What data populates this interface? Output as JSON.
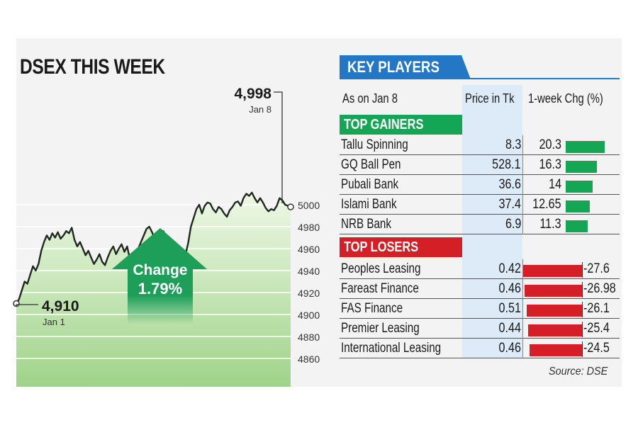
{
  "chart_data": [
    {
      "type": "area",
      "title": "DSEX THIS WEEK",
      "ylim": [
        4850,
        5010
      ],
      "yticks": [
        4860,
        4880,
        4900,
        4920,
        4940,
        4960,
        4980,
        5000
      ],
      "grid": true,
      "series": [
        {
          "values": [
            4910,
            4914,
            4922,
            4930,
            4928,
            4936,
            4944,
            4940,
            4946,
            4958,
            4966,
            4972,
            4968,
            4974,
            4970,
            4975,
            4969,
            4972,
            4976,
            4974,
            4979,
            4968,
            4962,
            4966,
            4960,
            4954,
            4958,
            4952,
            4946,
            4950,
            4955,
            4948,
            4945,
            4952,
            4958,
            4962,
            4955,
            4960,
            4964,
            4957,
            4962,
            4950,
            4946,
            4952,
            4960,
            4966,
            4972,
            4978,
            4980,
            4975,
            4968,
            4964,
            4970,
            4976,
            4972,
            4965,
            4960,
            4956,
            4962,
            4955,
            4958,
            4954,
            4965,
            4980,
            4988,
            4996,
            5000,
            4992,
            4999,
            5002,
            5001,
            4996,
            4993,
            4998,
            4996,
            4992,
            4989,
            4995,
            4998,
            5002,
            5003,
            4999,
            5006,
            5010,
            5008,
            5011,
            5006,
            5002,
            5006,
            5002,
            4997,
            4994,
            4996,
            4995,
            4999,
            5006,
            5004,
            5000,
            4999,
            4998
          ]
        }
      ],
      "start": {
        "value": "4,910",
        "date": "Jan 1"
      },
      "end": {
        "value": "4,998",
        "date": "Jan 8"
      },
      "change_label": "Change",
      "change_value": "1.79%"
    },
    {
      "type": "bar",
      "title": "KEY PLAYERS",
      "headers": {
        "as_on": "As on Jan 8",
        "price": "Price in Tk",
        "change": "1-week Chg (%)"
      },
      "gainers_label": "TOP GAINERS",
      "losers_label": "TOP LOSERS",
      "gainers": [
        {
          "name": "Tallu Spinning",
          "price": "8.3",
          "change": "20.3",
          "value": 20.3
        },
        {
          "name": "GQ Ball Pen",
          "price": "528.1",
          "change": "16.3",
          "value": 16.3
        },
        {
          "name": "Pubali Bank",
          "price": "36.6",
          "change": "14",
          "value": 14
        },
        {
          "name": "Islami Bank",
          "price": "37.4",
          "change": "12.65",
          "value": 12.65
        },
        {
          "name": "NRB Bank",
          "price": "6.9",
          "change": "11.3",
          "value": 11.3
        }
      ],
      "losers": [
        {
          "name": "Peoples Leasing",
          "price": "0.42",
          "change": "-27.6",
          "value": -27.6
        },
        {
          "name": "Fareast Finance",
          "price": "0.46",
          "change": "-26.98",
          "value": -26.98
        },
        {
          "name": "FAS Finance",
          "price": "0.51",
          "change": "-26.1",
          "value": -26.1
        },
        {
          "name": "Premier Leasing",
          "price": "0.44",
          "change": "-25.4",
          "value": -25.4
        },
        {
          "name": "International Leasing",
          "price": "0.46",
          "change": "-24.5",
          "value": -24.5
        }
      ],
      "source": "Source: DSE"
    }
  ],
  "colors": {
    "gain": "#14a654",
    "loss": "#d51f26",
    "accent": "#2377c4",
    "area_top": "#eaf6de",
    "area_bottom": "#9fd389"
  }
}
